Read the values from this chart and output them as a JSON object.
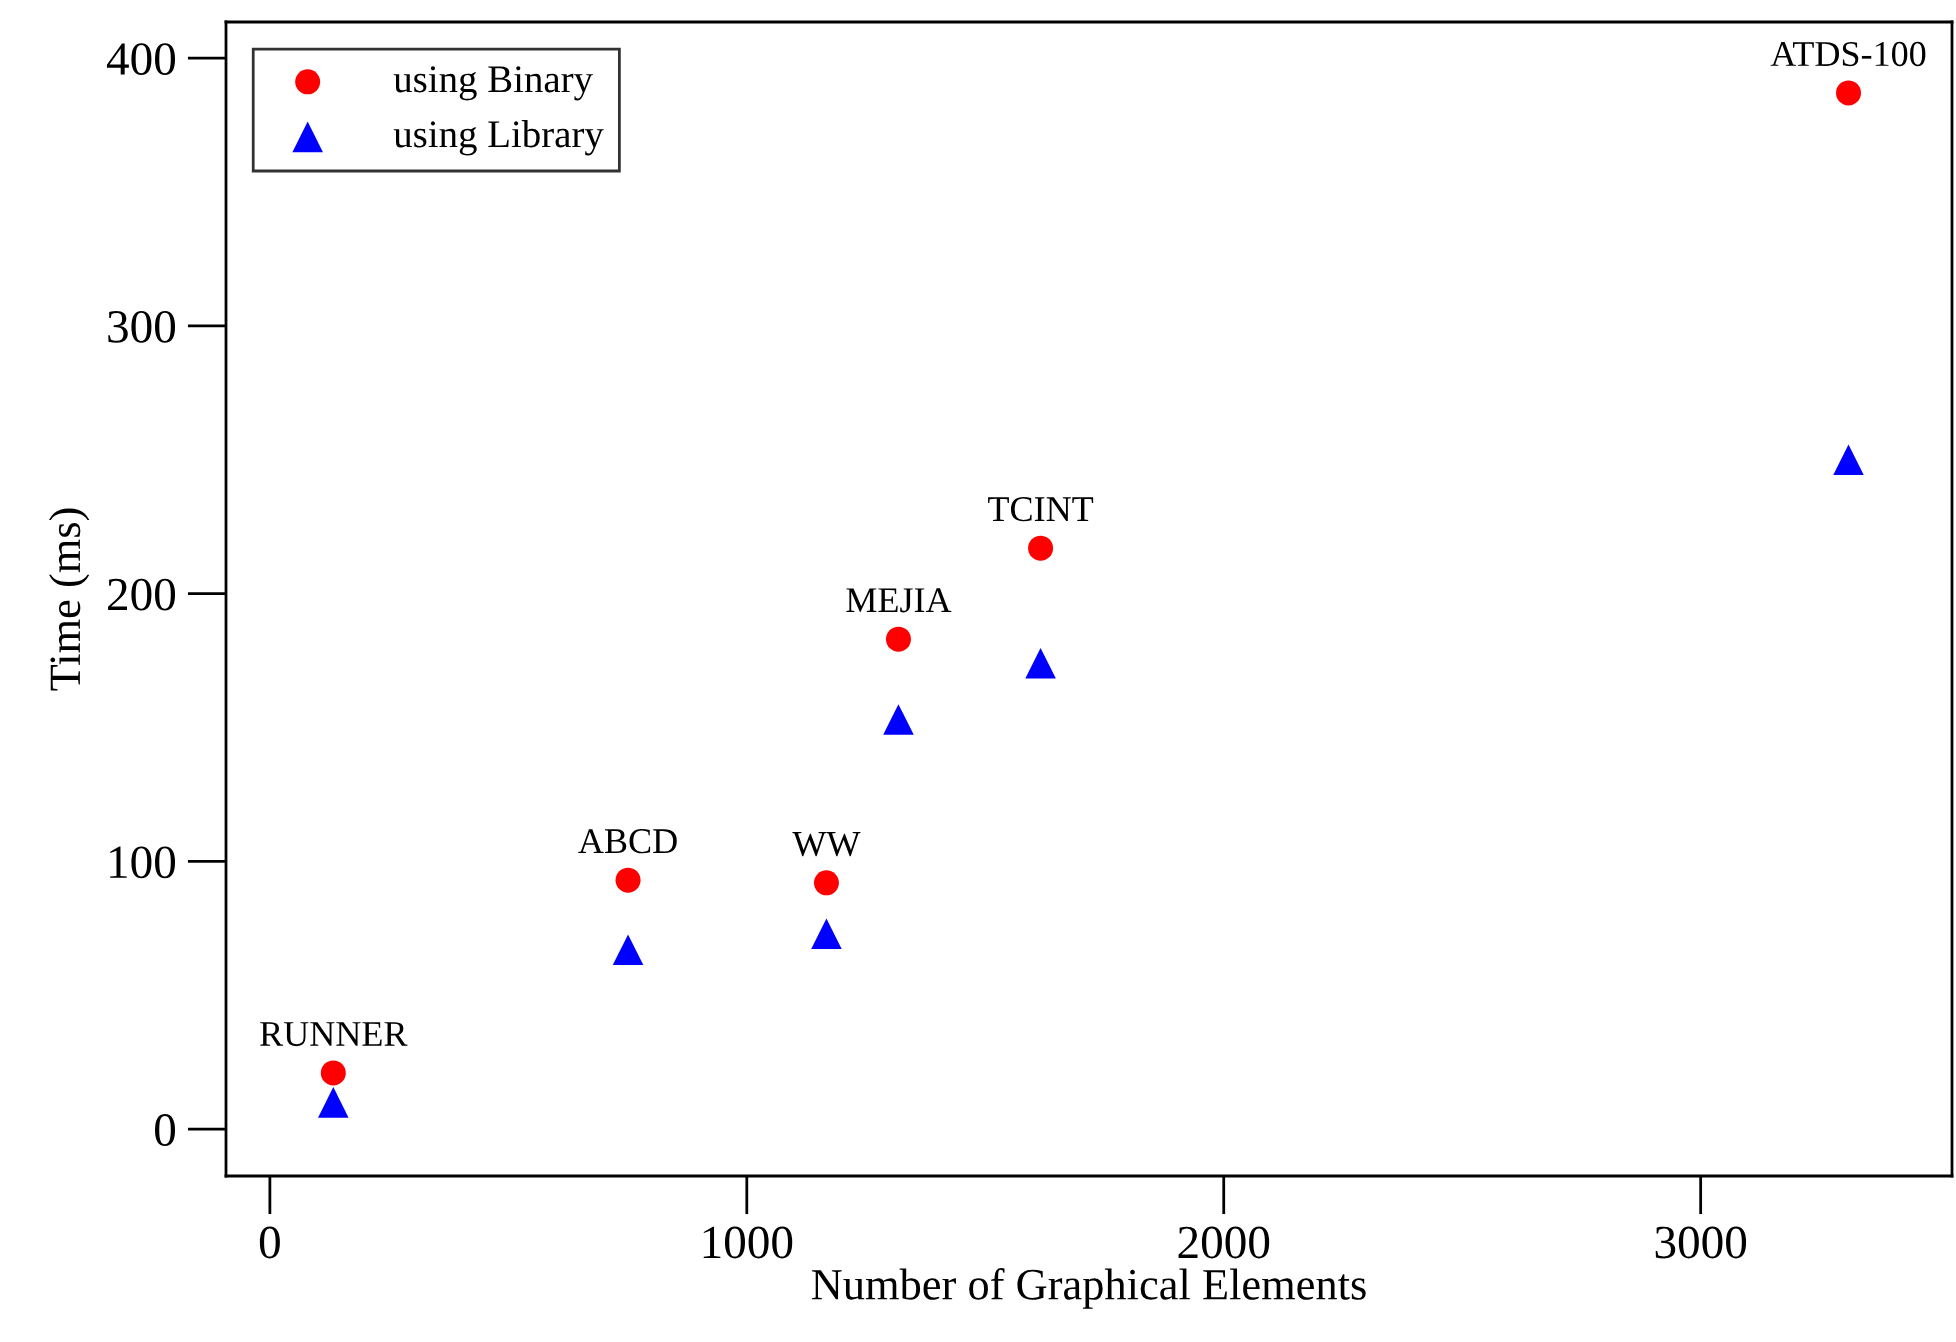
{
  "chart_data": {
    "type": "scatter",
    "xlabel": "Number of Graphical Elements",
    "ylabel": "Time (ms)",
    "xlim": [
      -92,
      3527
    ],
    "ylim": [
      -17.5,
      413.5
    ],
    "xticks": [
      0,
      1000,
      2000,
      3000
    ],
    "yticks": [
      0,
      100,
      200,
      300,
      400
    ],
    "legend": "top left",
    "x": [
      133,
      751,
      1167,
      1318,
      1616,
      3310
    ],
    "series": [
      {
        "name": "using Binary",
        "color": "#ff0000",
        "marker": "circle",
        "values": [
          21,
          93,
          92,
          183,
          217,
          387
        ]
      },
      {
        "name": "using Library",
        "color": "#0000ff",
        "marker": "triangle",
        "values": [
          10,
          67,
          73,
          153,
          174,
          250
        ]
      }
    ],
    "annotations": [
      {
        "text": "RUNNER",
        "x": 133,
        "y": 21
      },
      {
        "text": "ABCD",
        "x": 751,
        "y": 93
      },
      {
        "text": "WW",
        "x": 1167,
        "y": 92
      },
      {
        "text": "MEJIA",
        "x": 1318,
        "y": 183
      },
      {
        "text": "TCINT",
        "x": 1616,
        "y": 217
      },
      {
        "text": "ATDS-100",
        "x": 3310,
        "y": 387
      }
    ]
  }
}
